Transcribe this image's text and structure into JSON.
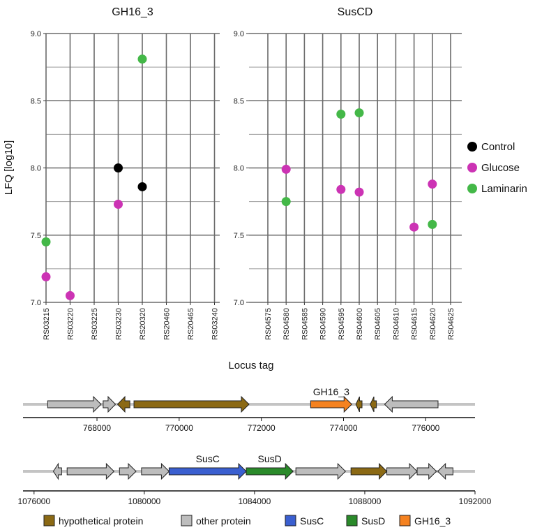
{
  "chart_data": {
    "type": "scatter",
    "ylabel": "LFQ [log10]",
    "xlabel": "Locus tag",
    "ylim": [
      7.0,
      9.0
    ],
    "yticks": [
      "7.0",
      "7.5",
      "8.0",
      "8.5",
      "9.0"
    ],
    "legend": {
      "position": "right",
      "entries": [
        {
          "name": "Control",
          "color": "#000000"
        },
        {
          "name": "Glucose",
          "color": "#cc33b4"
        },
        {
          "name": "Laminarin",
          "color": "#44b848"
        }
      ]
    },
    "panels": [
      {
        "title": "GH16_3",
        "categories": [
          "RS03215",
          "RS03220",
          "RS03225",
          "RS03230",
          "RS20320",
          "RS20460",
          "RS20465",
          "RS03240"
        ],
        "category_colors": [
          "#222222",
          "#222222",
          "#222222",
          "#222222",
          "#e07020",
          "#222222",
          "#222222",
          "#222222"
        ],
        "series": [
          {
            "name": "Control",
            "points": [
              {
                "x": "RS03230",
                "y": 8.0
              },
              {
                "x": "RS20320",
                "y": 7.86
              }
            ]
          },
          {
            "name": "Glucose",
            "points": [
              {
                "x": "RS03215",
                "y": 7.19
              },
              {
                "x": "RS03220",
                "y": 7.05
              },
              {
                "x": "RS03230",
                "y": 7.73
              }
            ]
          },
          {
            "name": "Laminarin",
            "points": [
              {
                "x": "RS03215",
                "y": 7.45
              },
              {
                "x": "RS20320",
                "y": 8.81
              }
            ]
          }
        ]
      },
      {
        "title": "SusCD",
        "categories": [
          "RS04575",
          "RS04580",
          "RS04585",
          "RS04590",
          "RS04595",
          "RS04600",
          "RS04605",
          "RS04610",
          "RS04615",
          "RS04620",
          "RS04625"
        ],
        "category_colors": [
          "#222222",
          "#222222",
          "#222222",
          "#222222",
          "#3a5fd0",
          "#2a8a2a",
          "#222222",
          "#222222",
          "#222222",
          "#222222",
          "#222222"
        ],
        "series": [
          {
            "name": "Control",
            "points": []
          },
          {
            "name": "Glucose",
            "points": [
              {
                "x": "RS04580",
                "y": 7.99
              },
              {
                "x": "RS04595",
                "y": 7.84
              },
              {
                "x": "RS04600",
                "y": 7.82
              },
              {
                "x": "RS04615",
                "y": 7.56
              },
              {
                "x": "RS04620",
                "y": 7.88
              }
            ]
          },
          {
            "name": "Laminarin",
            "points": [
              {
                "x": "RS04580",
                "y": 7.75
              },
              {
                "x": "RS04595",
                "y": 8.4
              },
              {
                "x": "RS04600",
                "y": 8.41
              },
              {
                "x": "RS04620",
                "y": 7.58
              }
            ]
          }
        ]
      }
    ],
    "gene_maps": [
      {
        "range": [
          766200,
          777200
        ],
        "ticks": [
          768000,
          770000,
          772000,
          774000,
          776000
        ],
        "tick_labels": [
          "768000",
          "770000",
          "772000",
          "774000",
          "776000"
        ],
        "genes": [
          {
            "start": 766800,
            "end": 768100,
            "strand": 1,
            "type": "other"
          },
          {
            "start": 768150,
            "end": 768450,
            "strand": 1,
            "type": "other"
          },
          {
            "start": 768500,
            "end": 768800,
            "strand": -1,
            "type": "hypothetical"
          },
          {
            "start": 768900,
            "end": 771700,
            "strand": 1,
            "type": "hypothetical"
          },
          {
            "start": 773200,
            "end": 774200,
            "strand": 1,
            "type": "GH16_3",
            "label": "GH16_3"
          },
          {
            "start": 774300,
            "end": 774450,
            "strand": -1,
            "type": "hypothetical"
          },
          {
            "start": 774650,
            "end": 774800,
            "strand": -1,
            "type": "hypothetical"
          },
          {
            "start": 775000,
            "end": 776300,
            "strand": -1,
            "type": "other"
          }
        ]
      },
      {
        "range": [
          1075600,
          1092000
        ],
        "ticks": [
          1076000,
          1080000,
          1084000,
          1088000,
          1092000
        ],
        "tick_labels": [
          "1076000",
          "1080000",
          "1084000",
          "1088000",
          "1092000"
        ],
        "genes": [
          {
            "start": 1076700,
            "end": 1077000,
            "strand": -1,
            "type": "other"
          },
          {
            "start": 1077200,
            "end": 1078900,
            "strand": 1,
            "type": "other"
          },
          {
            "start": 1079100,
            "end": 1079700,
            "strand": 1,
            "type": "other"
          },
          {
            "start": 1079900,
            "end": 1080900,
            "strand": 1,
            "type": "other"
          },
          {
            "start": 1080900,
            "end": 1083700,
            "strand": 1,
            "type": "SusC",
            "label": "SusC"
          },
          {
            "start": 1083700,
            "end": 1085400,
            "strand": 1,
            "type": "SusD",
            "label": "SusD"
          },
          {
            "start": 1085500,
            "end": 1087300,
            "strand": 1,
            "type": "other"
          },
          {
            "start": 1087500,
            "end": 1088800,
            "strand": 1,
            "type": "hypothetical"
          },
          {
            "start": 1088800,
            "end": 1089900,
            "strand": 1,
            "type": "other"
          },
          {
            "start": 1089900,
            "end": 1090600,
            "strand": 1,
            "type": "other"
          },
          {
            "start": 1090650,
            "end": 1091200,
            "strand": -1,
            "type": "other"
          }
        ]
      }
    ],
    "gene_legend": [
      {
        "type": "hypothetical",
        "label": "hypothetical protein",
        "color": "#8b6914"
      },
      {
        "type": "other",
        "label": "other protein",
        "color": "#bdbdbd"
      },
      {
        "type": "SusC",
        "label": "SusC",
        "color": "#3a5fd0"
      },
      {
        "type": "SusD",
        "label": "SusD",
        "color": "#2a8a2a"
      },
      {
        "type": "GH16_3",
        "label": "GH16_3",
        "color": "#f58220"
      }
    ]
  }
}
